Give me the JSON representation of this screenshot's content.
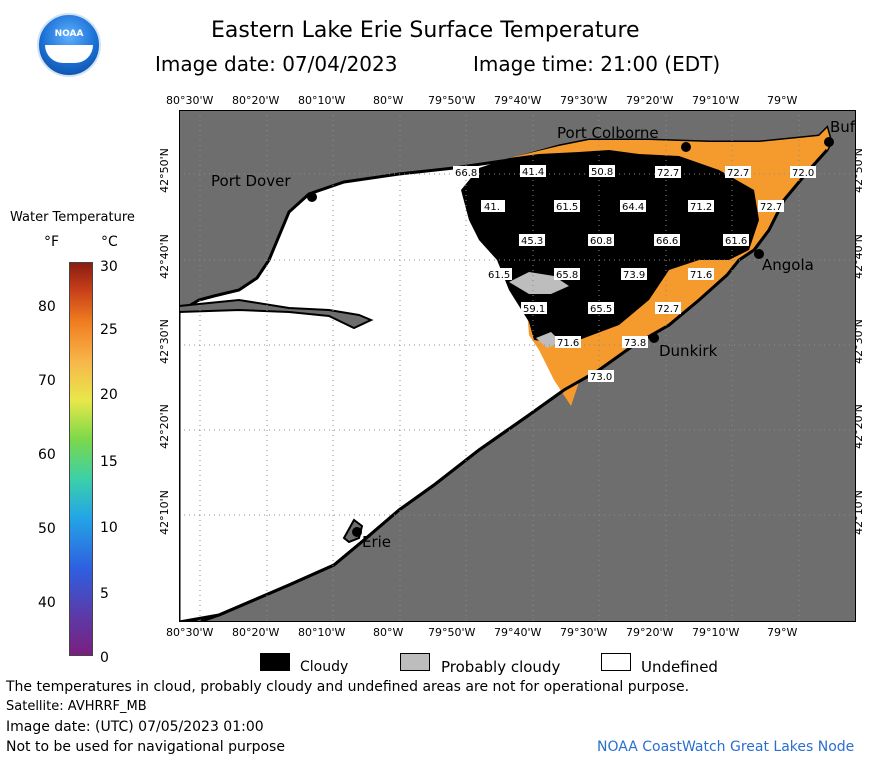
{
  "header": {
    "title": "Eastern Lake Erie Surface Temperature",
    "image_date": "Image date: 07/04/2023",
    "image_time": "Image time: 21:00 (EDT)",
    "logo_text": "NOAA"
  },
  "legend": {
    "title": "Water Temperature",
    "unit_f": "°F",
    "unit_c": "°C",
    "f_ticks": [
      "80",
      "70",
      "60",
      "50",
      "40"
    ],
    "c_ticks": [
      "30",
      "25",
      "20",
      "15",
      "10",
      "5",
      "0"
    ]
  },
  "map": {
    "lon_labels": [
      "80°30'W",
      "80°20'W",
      "80°10'W",
      "80°W",
      "79°50'W",
      "79°40'W",
      "79°30'W",
      "79°20'W",
      "79°10'W",
      "79°W"
    ],
    "lat_labels": [
      "42°50'N",
      "42°40'N",
      "42°30'N",
      "42°20'N",
      "42°10'N"
    ],
    "places": [
      {
        "name": "Port Dover"
      },
      {
        "name": "Port Colborne"
      },
      {
        "name": "Buf"
      },
      {
        "name": "Angola"
      },
      {
        "name": "Dunkirk"
      },
      {
        "name": "Erie"
      }
    ],
    "temps": [
      "66.8",
      "41.4",
      "50.8",
      "72.7",
      "72.7",
      "72.0",
      "41.",
      "61.5",
      "64.4",
      "71.2",
      "72.7",
      "45.3",
      "60.8",
      "66.6",
      "61.6",
      "61.5",
      "65.8",
      "73.9",
      "71.6",
      "59.1",
      "65.5",
      "72.7",
      "71.6",
      "73.8",
      "73.0"
    ],
    "colors": {
      "land": "#6e6e6e",
      "undefined": "#ffffff",
      "cloud": "#000000",
      "probably_cloudy": "#bdbdbd",
      "water_warm": "#f59a2c",
      "grid": "#8c8c8c"
    }
  },
  "categories": {
    "cloudy": "Cloudy",
    "probably_cloudy": "Probably cloudy",
    "undefined": "Undefined"
  },
  "footer": {
    "note": "The temperatures in cloud, probably cloudy and undefined areas are not for operational purpose.",
    "satellite": "Satellite: AVHRRF_MB",
    "utc_date": "Image date: (UTC) 07/05/2023  01:00",
    "nav_note": "Not to be used for navigational purpose",
    "credit": "NOAA CoastWatch Great Lakes Node"
  }
}
